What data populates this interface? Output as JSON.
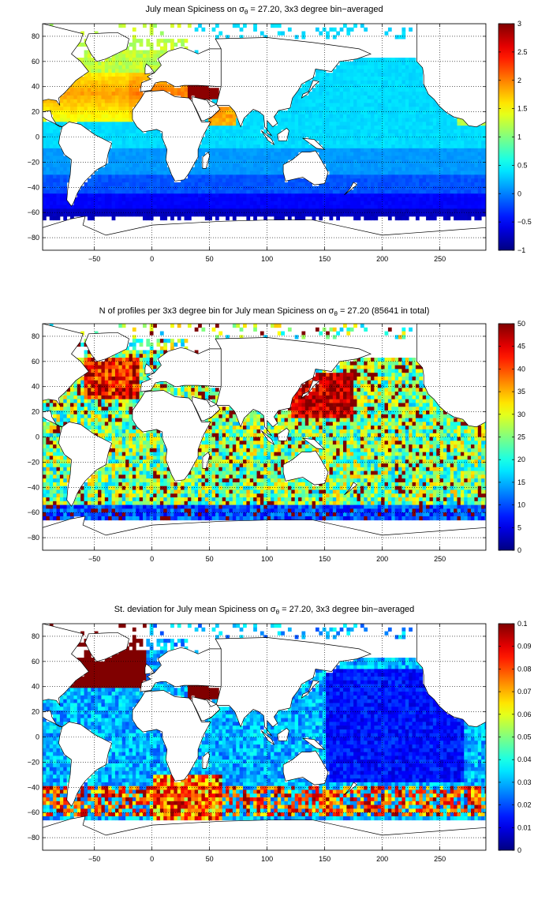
{
  "chart_data": [
    {
      "type": "heatmap",
      "title": {
        "prefix": "July mean Spiciness on ",
        "sigma": "σ",
        "sigma_sub": "θ",
        "suffix": " = 27.20, 3x3 degree bin−averaged"
      },
      "xlim": [
        -95,
        290
      ],
      "ylim": [
        -90,
        90
      ],
      "x_ticks": [
        -50,
        0,
        50,
        100,
        150,
        200,
        250
      ],
      "y_ticks": [
        80,
        60,
        40,
        20,
        0,
        -20,
        -40,
        -60,
        -80
      ],
      "colorbar": {
        "min": -1,
        "max": 3,
        "ticks": [
          3,
          2.5,
          2,
          1.5,
          1,
          0.5,
          0,
          -0.5,
          -1
        ]
      },
      "colormap": "jet",
      "field": "spice",
      "grid": true
    },
    {
      "type": "heatmap",
      "title": {
        "prefix": "N of profiles per 3x3 degree bin for July mean Spiciness on ",
        "sigma": "σ",
        "sigma_sub": "θ",
        "suffix": " = 27.20 (85641 in total)"
      },
      "xlim": [
        -95,
        290
      ],
      "ylim": [
        -90,
        90
      ],
      "x_ticks": [
        -50,
        0,
        50,
        100,
        150,
        200,
        250
      ],
      "y_ticks": [
        80,
        60,
        40,
        20,
        0,
        -20,
        -40,
        -60,
        -80
      ],
      "colorbar": {
        "min": 0,
        "max": 50,
        "ticks": [
          50,
          45,
          40,
          35,
          30,
          25,
          20,
          15,
          10,
          5,
          0
        ]
      },
      "colormap": "jet",
      "field": "count",
      "total_profiles": 85641,
      "grid": true
    },
    {
      "type": "heatmap",
      "title": {
        "prefix": "St. deviation for July mean Spiciness on ",
        "sigma": "σ",
        "sigma_sub": "θ",
        "suffix": " = 27.20, 3x3 degree bin−averaged"
      },
      "xlim": [
        -95,
        290
      ],
      "ylim": [
        -90,
        90
      ],
      "x_ticks": [
        -50,
        0,
        50,
        100,
        150,
        200,
        250
      ],
      "y_ticks": [
        80,
        60,
        40,
        20,
        0,
        -20,
        -40,
        -60,
        -80
      ],
      "colorbar": {
        "min": 0,
        "max": 0.1,
        "ticks": [
          0.1,
          0.09,
          0.08,
          0.07,
          0.06,
          0.05,
          0.04,
          0.03,
          0.02,
          0.01,
          0
        ]
      },
      "colormap": "jet",
      "field": "std",
      "grid": true
    }
  ]
}
